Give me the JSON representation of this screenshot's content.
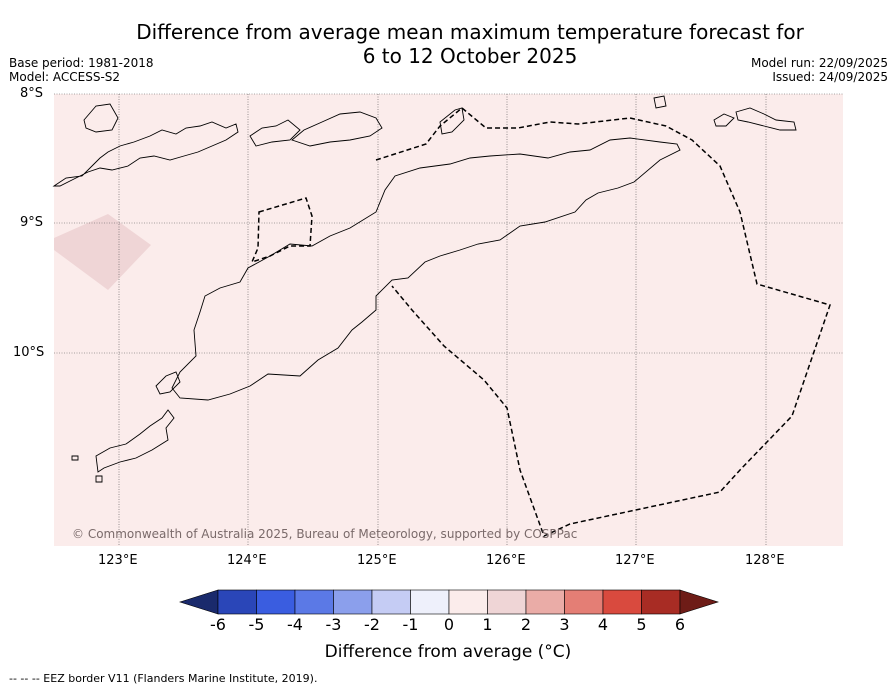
{
  "title": {
    "line1": "Difference from average mean maximum temperature forecast for",
    "line2": "6 to 12 October 2025"
  },
  "meta": {
    "base_period": "Base period: 1981-2018",
    "model": "Model: ACCESS-S2",
    "model_run": "Model run: 22/09/2025",
    "issued": "Issued: 24/09/2025"
  },
  "map": {
    "lat_labels": [
      "8°S",
      "9°S",
      "10°S"
    ],
    "lon_labels": [
      "123°E",
      "124°E",
      "125°E",
      "126°E",
      "127°E",
      "128°E"
    ],
    "copyright": "© Commonwealth of Australia 2025, Bureau of Meteorology, supported by COSPPac",
    "background_color": "#fbeceb",
    "patch_color": "#efd5d6"
  },
  "colorbar": {
    "ticks": [
      "-6",
      "-5",
      "-4",
      "-3",
      "-2",
      "-1",
      "0",
      "1",
      "2",
      "3",
      "4",
      "5",
      "6"
    ],
    "colors": [
      "#1a2a6c",
      "#2a46b8",
      "#3a5de0",
      "#5b79e6",
      "#8b9fec",
      "#c5ccf4",
      "#eef0fb",
      "#fbeceb",
      "#efd5d6",
      "#eaaca7",
      "#e47e75",
      "#d94a3e",
      "#a82c24",
      "#6e1c17"
    ],
    "title": "Difference from average (°C)"
  },
  "footnote": "-- -- -- EEZ border V11 (Flanders Marine Institute, 2019)."
}
